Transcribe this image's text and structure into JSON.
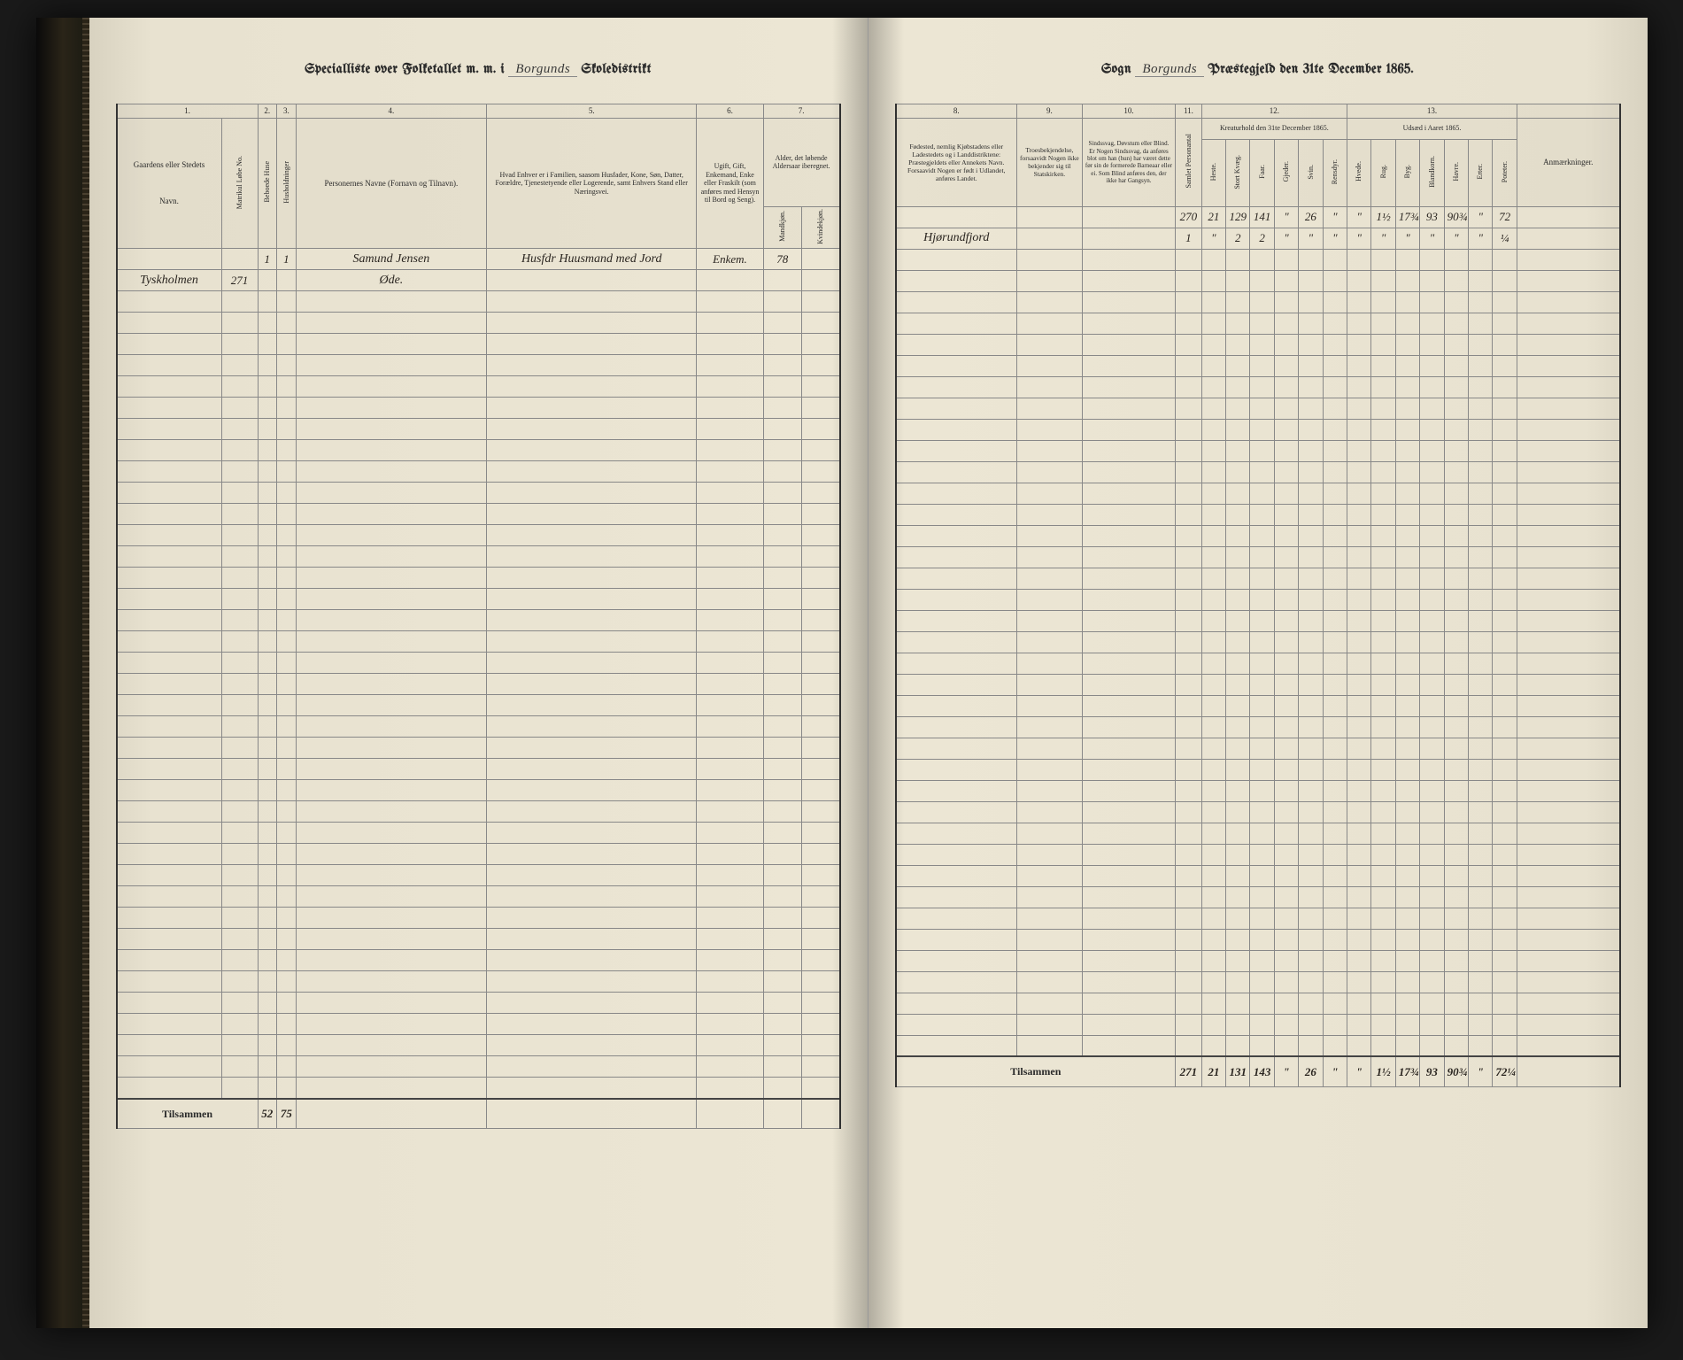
{
  "meta": {
    "title_left_prefix": "Specialliste over Folketallet m. m. i",
    "title_left_district": "Borgunds",
    "title_left_suffix": "Skoledistrikt",
    "title_right_sogn_label": "Sogn",
    "title_right_sogn": "Borgunds",
    "title_right_suffix": "Præstegjeld den 31te December 1865."
  },
  "left": {
    "col_nums": [
      "1.",
      "2.",
      "3.",
      "4.",
      "5.",
      "6.",
      "7."
    ],
    "h1": "Gaardens eller Stedets",
    "h1_sub": "Navn.",
    "h1_num": "Matrikul Løbe No.",
    "h2": "Beboede Huse",
    "h3": "Husholdninger",
    "h4": "Personernes Navne (Fornavn og Tilnavn).",
    "h5": "Hvad Enhver er i Familien, saasom Husfader, Kone, Søn, Datter, Forældre, Tjenestetyende eller Logerende, samt Enhvers Stand eller Næringsvei.",
    "h6": "Ugift, Gift, Enkemand, Enke eller Fraskilt (som anføres med Hensyn til Bord og Seng).",
    "h7": "Alder, det løbende Aldersaar iberegnet.",
    "h7a": "Mandkjøn.",
    "h7b": "Kvindekjøn.",
    "rows": [
      {
        "c1": "",
        "num": "",
        "c2": "1",
        "c3": "1",
        "c4": "Samund Jensen",
        "c5": "Husfdr Huusmand med Jord",
        "c6": "Enkem.",
        "c7a": "78",
        "c7b": ""
      },
      {
        "c1": "Tyskholmen",
        "num": "271",
        "c2": "",
        "c3": "",
        "c4": "Øde.",
        "c5": "",
        "c6": "",
        "c7a": "",
        "c7b": ""
      }
    ],
    "empty_rows": 38,
    "footer_label": "Tilsammen",
    "footer": {
      "c2": "52",
      "c3": "75"
    }
  },
  "right": {
    "col_nums": [
      "8.",
      "9.",
      "10.",
      "11.",
      "12.",
      "13."
    ],
    "h8": "Fødested, nemlig Kjøbstadens eller Ladestedets og i Landdistriktene: Præstegjeldets eller Annekets Navn. Forsaavidt Nogen er født i Udlandet, anføres Landet.",
    "h9": "Troesbekjendelse, forsaavidt Nogen ikke bekjender sig til Statskirken.",
    "h10": "Sindssvag, Døvstum eller Blind. Er Nogen Sindssvag, da anføres blot om han (hun) har været dette før sin de formerede Barneaar eller ei. Som Blind anføres den, der ikke har Gangsyn.",
    "h11": "Samlet Personantal",
    "h12_title": "Kreaturhold den 31te December 1865.",
    "h12_cols": [
      "Heste.",
      "Stort Kvæg.",
      "Faar.",
      "Gjeder.",
      "Svin.",
      "Rensdyr."
    ],
    "h13_title": "Udsæd i Aaret 1865.",
    "h13_cols": [
      "Hvede.",
      "Rug.",
      "Byg.",
      "Blandkorn.",
      "Havre.",
      "Erter.",
      "Poteter."
    ],
    "h14": "Anmærkninger.",
    "rows": [
      {
        "c8": "",
        "c9": "",
        "c10": "",
        "c11": "270",
        "k": [
          "21",
          "129",
          "141",
          "\"",
          "26",
          "\""
        ],
        "u": [
          "\"",
          "1½",
          "17¾",
          "93",
          "90¾",
          "\"",
          "72"
        ]
      },
      {
        "c8": "Hjørundfjord",
        "c9": "",
        "c10": "",
        "c11": "1",
        "k": [
          "\"",
          "2",
          "2",
          "\"",
          "\"",
          "\""
        ],
        "u": [
          "\"",
          "\"",
          "\"",
          "\"",
          "\"",
          "\"",
          "¼"
        ]
      }
    ],
    "empty_rows": 38,
    "footer_label": "Tilsammen",
    "footer": {
      "c11": "271",
      "k": [
        "21",
        "131",
        "143",
        "\"",
        "26",
        "\""
      ],
      "u": [
        "\"",
        "1½",
        "17¾",
        "93",
        "90¾",
        "\"",
        "72¼"
      ]
    }
  },
  "colors": {
    "paper": "#e8e2d0",
    "ink": "#2a2a2a",
    "rule": "#888",
    "faint_rule": "#b8b0a0"
  }
}
